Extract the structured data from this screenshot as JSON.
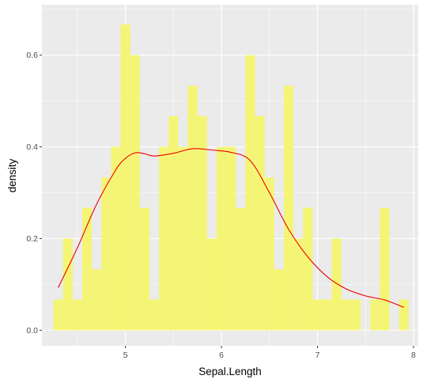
{
  "chart_data": {
    "type": "histogram",
    "title": "",
    "xlabel": "Sepal.Length",
    "ylabel": "density",
    "xlim": [
      4.13,
      8.05
    ],
    "ylim": [
      -0.034,
      0.71
    ],
    "xticks": [
      5,
      6,
      7,
      8
    ],
    "yticks": [
      0.0,
      0.2,
      0.4,
      0.6
    ],
    "ytick_labels": [
      "0.0",
      "0.2",
      "0.4",
      "0.6"
    ],
    "grid": true,
    "legend": "none",
    "bin_width": 0.1,
    "bins": [
      {
        "x": 4.3,
        "density": 0.067
      },
      {
        "x": 4.4,
        "density": 0.2
      },
      {
        "x": 4.5,
        "density": 0.067
      },
      {
        "x": 4.6,
        "density": 0.267
      },
      {
        "x": 4.7,
        "density": 0.133
      },
      {
        "x": 4.8,
        "density": 0.333
      },
      {
        "x": 4.9,
        "density": 0.4
      },
      {
        "x": 5.0,
        "density": 0.667
      },
      {
        "x": 5.1,
        "density": 0.6
      },
      {
        "x": 5.2,
        "density": 0.267
      },
      {
        "x": 5.3,
        "density": 0.067
      },
      {
        "x": 5.4,
        "density": 0.4
      },
      {
        "x": 5.5,
        "density": 0.467
      },
      {
        "x": 5.6,
        "density": 0.4
      },
      {
        "x": 5.7,
        "density": 0.533
      },
      {
        "x": 5.8,
        "density": 0.467
      },
      {
        "x": 5.9,
        "density": 0.2
      },
      {
        "x": 6.0,
        "density": 0.4
      },
      {
        "x": 6.1,
        "density": 0.4
      },
      {
        "x": 6.2,
        "density": 0.267
      },
      {
        "x": 6.3,
        "density": 0.6
      },
      {
        "x": 6.4,
        "density": 0.467
      },
      {
        "x": 6.5,
        "density": 0.333
      },
      {
        "x": 6.6,
        "density": 0.133
      },
      {
        "x": 6.7,
        "density": 0.533
      },
      {
        "x": 6.8,
        "density": 0.2
      },
      {
        "x": 6.9,
        "density": 0.267
      },
      {
        "x": 7.0,
        "density": 0.067
      },
      {
        "x": 7.1,
        "density": 0.067
      },
      {
        "x": 7.2,
        "density": 0.2
      },
      {
        "x": 7.3,
        "density": 0.067
      },
      {
        "x": 7.4,
        "density": 0.067
      },
      {
        "x": 7.5,
        "density": 0.0
      },
      {
        "x": 7.6,
        "density": 0.067
      },
      {
        "x": 7.7,
        "density": 0.267
      },
      {
        "x": 7.8,
        "density": 0.0
      },
      {
        "x": 7.9,
        "density": 0.067
      }
    ],
    "density_curve": {
      "x": [
        4.3,
        4.5,
        4.7,
        4.9,
        5.0,
        5.1,
        5.2,
        5.3,
        5.5,
        5.7,
        5.9,
        6.1,
        6.3,
        6.5,
        6.7,
        6.9,
        7.1,
        7.3,
        7.5,
        7.7,
        7.9
      ],
      "y": [
        0.093,
        0.18,
        0.275,
        0.35,
        0.375,
        0.387,
        0.385,
        0.38,
        0.386,
        0.396,
        0.393,
        0.388,
        0.37,
        0.3,
        0.22,
        0.16,
        0.117,
        0.09,
        0.075,
        0.066,
        0.05
      ]
    },
    "colors": {
      "panel_background": "#ebebeb",
      "grid": "#ffffff",
      "bar_fill": "#f5f575",
      "density_line": "#ee0000",
      "tick_text": "#4d4d4d",
      "axis_title": "#000000"
    }
  }
}
